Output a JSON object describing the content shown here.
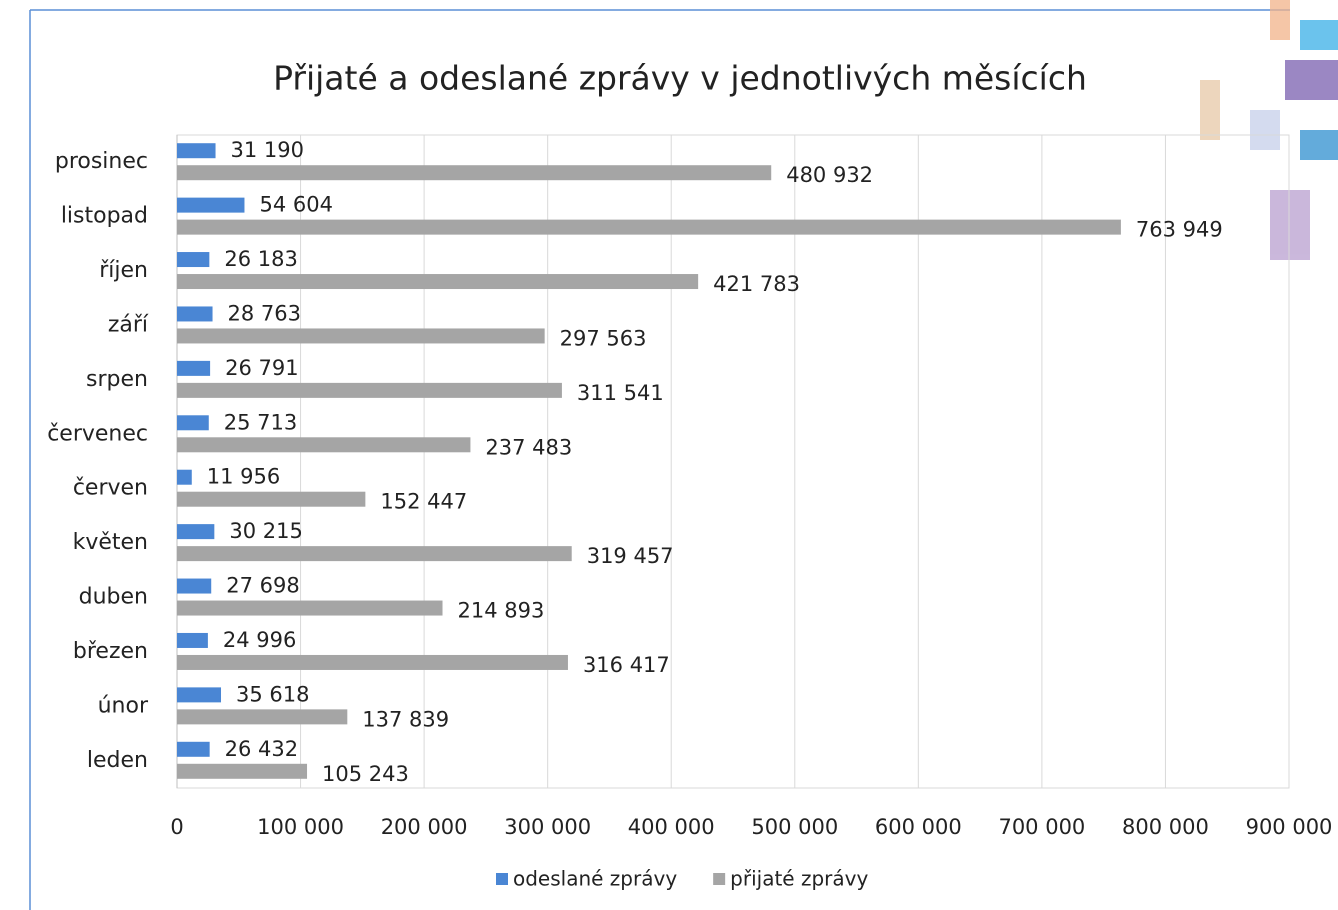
{
  "chart_data": {
    "type": "hbar",
    "title": "Přijaté a odeslané zprávy v jednotlivých měsících",
    "categories": [
      "leden",
      "únor",
      "březen",
      "duben",
      "květen",
      "červen",
      "červenec",
      "srpen",
      "září",
      "říjen",
      "listopad",
      "prosinec"
    ],
    "series": [
      {
        "name": "odeslané zprávy",
        "color": "#4a86d4",
        "values": [
          26432,
          35618,
          24996,
          27698,
          30215,
          11956,
          25713,
          26791,
          28763,
          26183,
          54604,
          31190
        ],
        "value_labels": [
          "26 432",
          "35 618",
          "24 996",
          "27 698",
          "30 215",
          "11 956",
          "25 713",
          "26 791",
          "28 763",
          "26 183",
          "54 604",
          "31 190"
        ]
      },
      {
        "name": "přijaté zprávy",
        "color": "#a5a5a5",
        "values": [
          105243,
          137839,
          316417,
          214893,
          319457,
          152447,
          237483,
          311541,
          297563,
          421783,
          763949,
          480932
        ],
        "value_labels": [
          "105 243",
          "137 839",
          "316 417",
          "214 893",
          "319 457",
          "152 447",
          "237 483",
          "311 541",
          "297 563",
          "421 783",
          "763 949",
          "480 932"
        ]
      }
    ],
    "xlim": [
      0,
      900000
    ],
    "xticks": [
      0,
      {
        "value": 100000,
        "label": "100 000"
      },
      {
        "value": 200000,
        "label": "200 000"
      },
      {
        "value": 300000,
        "label": "300 000"
      },
      {
        "value": 400000,
        "label": "400 000"
      },
      {
        "value": 500000,
        "label": "500 000"
      },
      {
        "value": 600000,
        "label": "600 000"
      },
      {
        "value": 700000,
        "label": "700 000"
      },
      {
        "value": 800000,
        "label": "800 000"
      },
      {
        "value": 900000,
        "label": "900 000"
      }
    ],
    "grid": true,
    "legend": "bottom"
  }
}
